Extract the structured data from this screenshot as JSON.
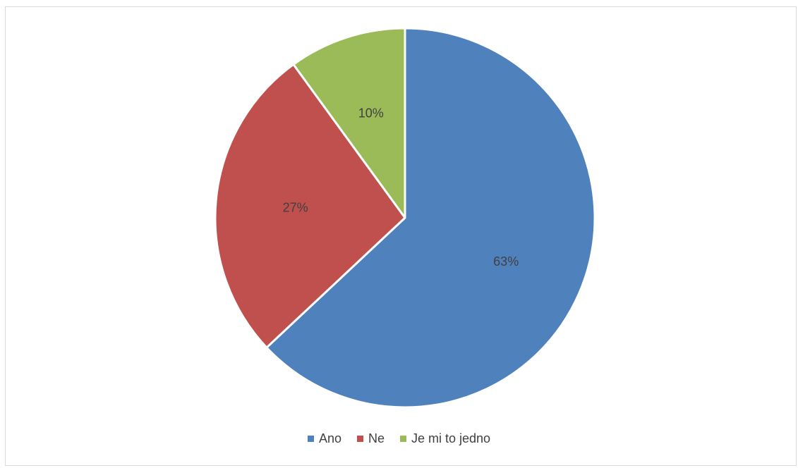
{
  "chart_data": {
    "type": "pie",
    "title": "",
    "categories": [
      "Ano",
      "Ne",
      "Je mi to jedno"
    ],
    "values": [
      63,
      27,
      10
    ],
    "data_labels": [
      "63%",
      "27%",
      "10%"
    ],
    "colors": [
      "#4f81bd",
      "#c0504d",
      "#9bbb59"
    ],
    "start_angle": "12 o'clock",
    "direction": "clockwise",
    "legend_position": "bottom"
  }
}
